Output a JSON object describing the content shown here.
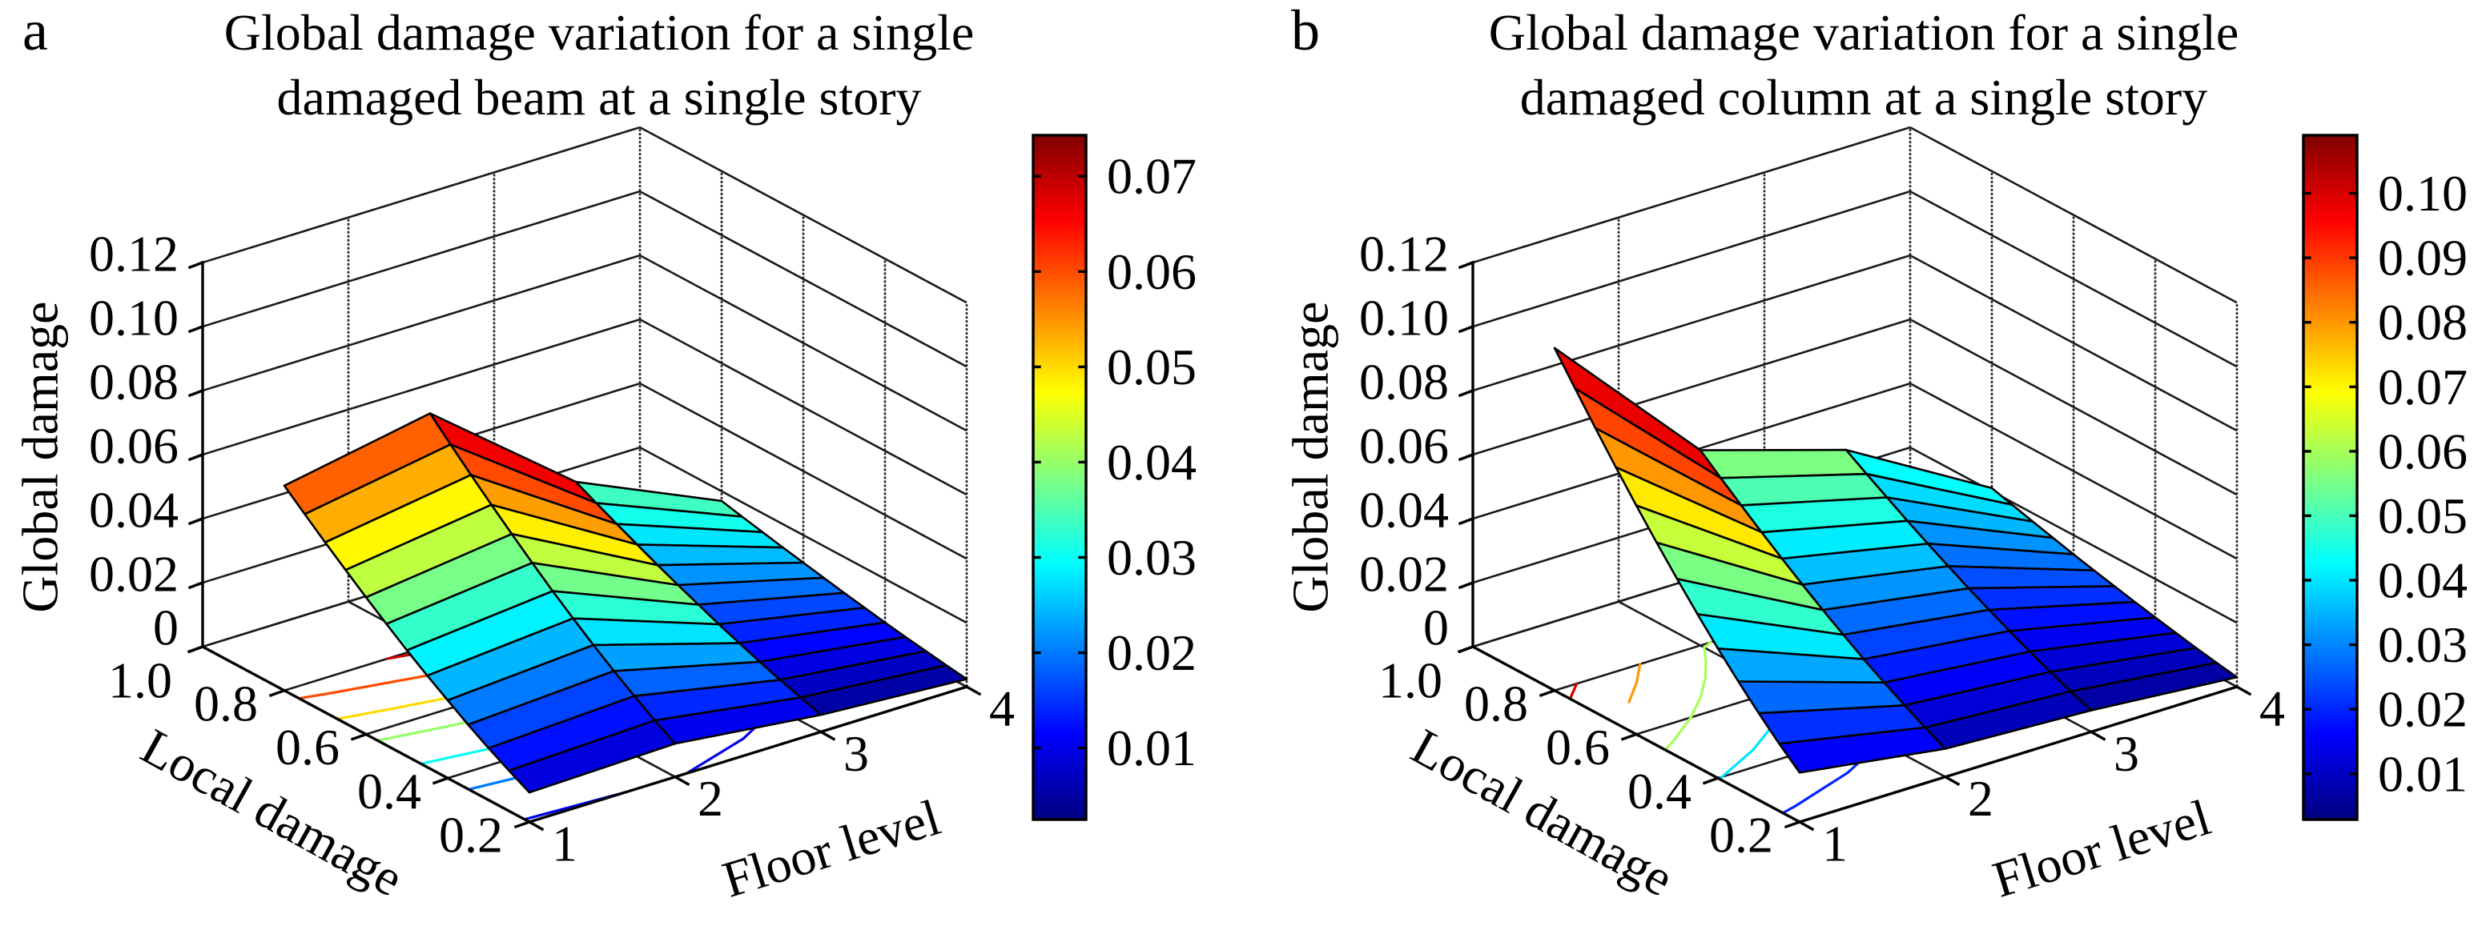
{
  "chart_data": [
    {
      "type": "surface",
      "panel_label": "a",
      "title": [
        "Global damage variation for a single",
        "damaged beam at a single story"
      ],
      "xlabel": "Floor level",
      "ylabel": "Local damage",
      "zlabel": "Global damage",
      "floor_levels": [
        1,
        2,
        3,
        4
      ],
      "local_damage": [
        0.2,
        0.25,
        0.3,
        0.35,
        0.4,
        0.45,
        0.5,
        0.55,
        0.6,
        0.65,
        0.7,
        0.75,
        0.8
      ],
      "global_damage_by_floor": [
        [
          0.0092,
          0.0126,
          0.0162,
          0.0201,
          0.0243,
          0.0286,
          0.0331,
          0.0379,
          0.0428,
          0.0479,
          0.0531,
          0.0585,
          0.064
        ],
        [
          0.0104,
          0.0142,
          0.0184,
          0.0228,
          0.0275,
          0.0324,
          0.0375,
          0.0429,
          0.0485,
          0.0542,
          0.0601,
          0.0662,
          0.0725
        ],
        [
          0.0053,
          0.0073,
          0.0094,
          0.0116,
          0.014,
          0.0165,
          0.0192,
          0.0219,
          0.0247,
          0.0277,
          0.0307,
          0.0338,
          0.037
        ],
        [
          0.0024,
          0.0033,
          0.0043,
          0.0053,
          0.0064,
          0.0076,
          0.0088,
          0.0101,
          0.0114,
          0.0127,
          0.0141,
          0.0155,
          0.017
        ]
      ],
      "xlim": [
        1,
        4
      ],
      "ylim": [
        0.2,
        1.0
      ],
      "zlim": [
        0,
        0.12
      ],
      "xticks": [
        1,
        2,
        3,
        4
      ],
      "xtick_labels": [
        "1",
        "2",
        "3",
        "4"
      ],
      "yticks": [
        0.2,
        0.4,
        0.6,
        0.8,
        1.0
      ],
      "ytick_labels": [
        "0.2",
        "0.4",
        "0.6",
        "0.8",
        "1.0"
      ],
      "zticks": [
        0,
        0.02,
        0.04,
        0.06,
        0.08,
        0.1,
        0.12
      ],
      "ztick_labels": [
        "0",
        "0.02",
        "0.04",
        "0.06",
        "0.08",
        "0.10",
        "0.12"
      ],
      "grid": true,
      "contour_levels": [
        0.01,
        0.02,
        0.03,
        0.04,
        0.05,
        0.06,
        0.07
      ],
      "colorbar": {
        "colormap": "jet",
        "range": [
          0.0025,
          0.0743
        ],
        "ticks": [
          0.01,
          0.02,
          0.03,
          0.04,
          0.05,
          0.06,
          0.07
        ],
        "tick_labels": [
          "0.01",
          "0.02",
          "0.03",
          "0.04",
          "0.05",
          "0.06",
          "0.07"
        ]
      }
    },
    {
      "type": "surface",
      "panel_label": "b",
      "title": [
        "Global damage variation for a single",
        "damaged column at a single story"
      ],
      "xlabel": "Floor level",
      "ylabel": "Local damage",
      "zlabel": "Global damage",
      "floor_levels": [
        1,
        2,
        3,
        4
      ],
      "local_damage": [
        0.2,
        0.25,
        0.3,
        0.35,
        0.4,
        0.45,
        0.5,
        0.55,
        0.6,
        0.65,
        0.7,
        0.75,
        0.8
      ],
      "global_damage_by_floor": [
        [
          0.0154,
          0.021,
          0.0271,
          0.0336,
          0.0405,
          0.0478,
          0.0554,
          0.0633,
          0.0715,
          0.08,
          0.0888,
          0.0978,
          0.107
        ],
        [
          0.0088,
          0.012,
          0.0155,
          0.0192,
          0.0231,
          0.0273,
          0.0316,
          0.0361,
          0.0408,
          0.0456,
          0.0506,
          0.0557,
          0.061
        ],
        [
          0.0067,
          0.0092,
          0.0119,
          0.0148,
          0.0178,
          0.021,
          0.0243,
          0.0278,
          0.0314,
          0.0351,
          0.039,
          0.0429,
          0.047
        ],
        [
          0.003,
          0.0041,
          0.0053,
          0.0066,
          0.008,
          0.0094,
          0.0109,
          0.0124,
          0.014,
          0.0157,
          0.0174,
          0.0192,
          0.021
        ]
      ],
      "xlim": [
        1,
        4
      ],
      "ylim": [
        0.2,
        1.0
      ],
      "zlim": [
        0,
        0.12
      ],
      "xticks": [
        1,
        2,
        3,
        4
      ],
      "xtick_labels": [
        "1",
        "2",
        "3",
        "4"
      ],
      "yticks": [
        0.2,
        0.4,
        0.6,
        0.8,
        1.0
      ],
      "ytick_labels": [
        "0.2",
        "0.4",
        "0.6",
        "0.8",
        "1.0"
      ],
      "zticks": [
        0,
        0.02,
        0.04,
        0.06,
        0.08,
        0.1,
        0.12
      ],
      "ztick_labels": [
        "0",
        "0.02",
        "0.04",
        "0.06",
        "0.08",
        "0.10",
        "0.12"
      ],
      "grid": true,
      "contour_levels": [
        0.02,
        0.04,
        0.06,
        0.08,
        0.1
      ],
      "colorbar": {
        "colormap": "jet",
        "range": [
          0.0029,
          0.109
        ],
        "ticks": [
          0.01,
          0.02,
          0.03,
          0.04,
          0.05,
          0.06,
          0.07,
          0.08,
          0.09,
          0.1
        ],
        "tick_labels": [
          "0.01",
          "0.02",
          "0.03",
          "0.04",
          "0.05",
          "0.06",
          "0.07",
          "0.08",
          "0.09",
          "0.10"
        ]
      }
    }
  ]
}
